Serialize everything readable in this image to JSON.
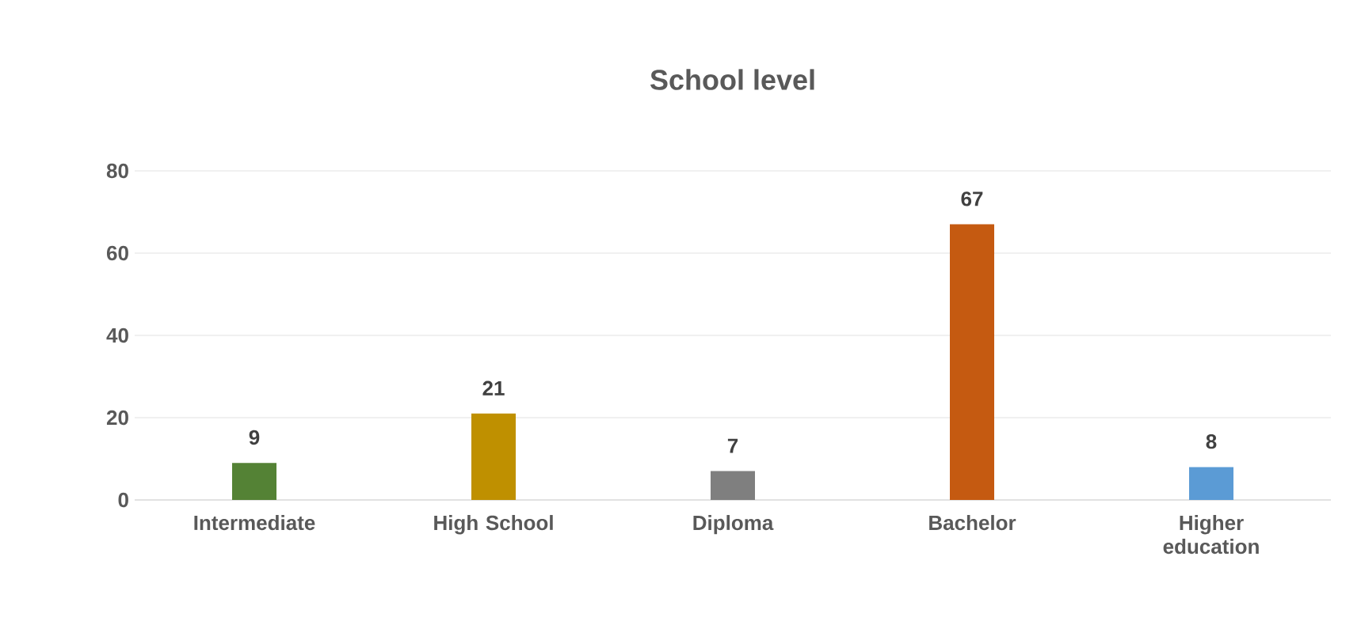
{
  "chart_data": {
    "type": "bar",
    "title": "School level",
    "categories": [
      "Intermediate",
      "High School",
      "Diploma",
      "Bachelor",
      "Higher education"
    ],
    "values": [
      9,
      21,
      7,
      67,
      8
    ],
    "colors": [
      "#548235",
      "#bf9000",
      "#7f7f7f",
      "#c55a11",
      "#5b9bd5"
    ],
    "ylim": [
      0,
      80
    ],
    "yticks": [
      0,
      20,
      40,
      60,
      80
    ],
    "grid": "y",
    "data_labels": true
  }
}
